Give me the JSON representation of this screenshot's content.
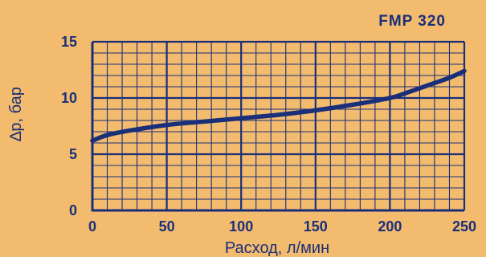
{
  "chart_data": {
    "type": "line",
    "title": "FMP 320",
    "xlabel": "Расход, л/мин",
    "ylabel": "∆p, бар",
    "xlim": [
      0,
      250
    ],
    "ylim": [
      0,
      15
    ],
    "xticks": [
      "0",
      "50",
      "100",
      "150",
      "200",
      "250"
    ],
    "yticks": [
      "0",
      "5",
      "10",
      "15"
    ],
    "grid": true,
    "series": [
      {
        "x": [
          0,
          10,
          25,
          50,
          75,
          100,
          125,
          150,
          175,
          200,
          212,
          225,
          240,
          250
        ],
        "y": [
          6.2,
          6.7,
          7.1,
          7.6,
          7.9,
          8.2,
          8.5,
          8.9,
          9.4,
          10.0,
          10.5,
          11.1,
          11.8,
          12.4
        ]
      }
    ]
  },
  "colors": {
    "background": "#f3bb6e",
    "axis": "#1a2f7a",
    "line": "#1a2f7a"
  }
}
